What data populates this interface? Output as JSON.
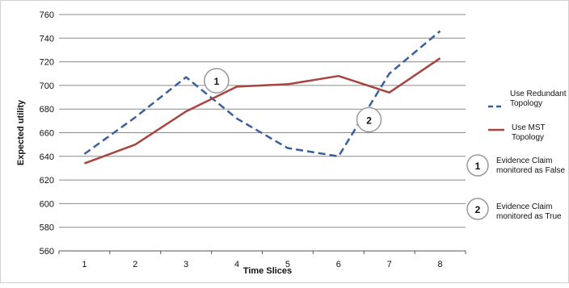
{
  "chart_data": {
    "type": "line",
    "xlabel": "Time Slices",
    "ylabel": "Expected utility",
    "x": [
      1,
      2,
      3,
      4,
      5,
      6,
      7,
      8
    ],
    "ylim": [
      560,
      760
    ],
    "yticks": [
      560,
      580,
      600,
      620,
      640,
      660,
      680,
      700,
      720,
      740,
      760
    ],
    "grid": true,
    "legend_position": "right",
    "series": [
      {
        "name": "Use Redundant Topology",
        "style": "dashed",
        "color": "#3a5f9e",
        "values": [
          642,
          673,
          707,
          672,
          647,
          640,
          710,
          746
        ]
      },
      {
        "name": "Use MST Topology",
        "style": "solid",
        "color": "#a8433f",
        "values": [
          634,
          650,
          678,
          699,
          701,
          708,
          694,
          723
        ]
      }
    ],
    "annotations": [
      {
        "number": "1",
        "text": "Evidence Claim monitored as False",
        "near_x": 3.6,
        "near_y": 704
      },
      {
        "number": "2",
        "text": "Evidence Claim monitored as True",
        "near_x": 6.6,
        "near_y": 671
      }
    ]
  }
}
